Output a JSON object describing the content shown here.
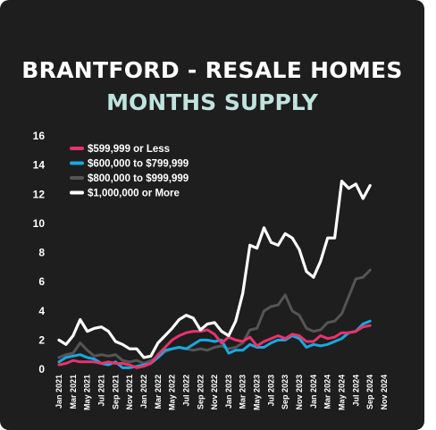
{
  "title": "BRANTFORD - RESALE HOMES",
  "subtitle": "MONTHS SUPPLY",
  "colors": {
    "background": "#1e1e1e",
    "subtitle": "#bfe3de",
    "s599": "#e8336b",
    "s600_799": "#1aa8e0",
    "s800_999": "#555555",
    "s1m": "#ffffff"
  },
  "chart_data": {
    "type": "line",
    "title": "MONTHS SUPPLY",
    "xlabel": "",
    "ylabel": "",
    "ylim": [
      0,
      16
    ],
    "yticks": [
      0,
      2,
      4,
      6,
      8,
      10,
      12,
      14,
      16
    ],
    "grid": false,
    "legend_position": "top-left",
    "x": [
      "Jan 2021",
      "Feb 2021",
      "Mar 2021",
      "Apr 2021",
      "May 2021",
      "Jun 2021",
      "Jul 2021",
      "Aug 2021",
      "Sep 2021",
      "Oct 2021",
      "Nov 2021",
      "Dec 2021",
      "Jan 2022",
      "Feb 2022",
      "Mar 2022",
      "Apr 2022",
      "May 2022",
      "Jun 2022",
      "Jul 2022",
      "Aug 2022",
      "Sep 2022",
      "Oct 2022",
      "Nov 2022",
      "Dec 2022",
      "Jan 2023",
      "Feb 2023",
      "Mar 2023",
      "Apr 2023",
      "May 2023",
      "Jun 2023",
      "Jul 2023",
      "Aug 2023",
      "Sep 2023",
      "Oct 2023",
      "Nov 2023",
      "Dec 2023",
      "Jan 2024",
      "Feb 2024",
      "Mar 2024",
      "Apr 2024",
      "May 2024",
      "Jun 2024",
      "Jul 2024",
      "Aug 2024",
      "Sep 2024",
      "Oct 2024",
      "Nov 2024"
    ],
    "x_tick_labels": [
      "Jan 2021",
      "Mar 2021",
      "May 2021",
      "Jul 2021",
      "Sep 2021",
      "Nov 2021",
      "Jan 2022",
      "Mar 2022",
      "May 2022",
      "Jul 2022",
      "Sep 2022",
      "Nov 2022",
      "Jan 2023",
      "Mar 2023",
      "May 2023",
      "Jul 2023",
      "Sep 2023",
      "Nov 2023",
      "Jan 2024",
      "Mar 2024",
      "May 2024",
      "Jul 2024",
      "Sep 2024",
      "Nov 2024"
    ],
    "series": [
      {
        "name": "$599,999 or Less",
        "color": "#e8336b",
        "values": [
          0.3,
          0.4,
          0.6,
          0.5,
          0.5,
          0.5,
          0.4,
          0.5,
          0.4,
          0.4,
          0.3,
          0.1,
          0.2,
          0.4,
          1.0,
          1.5,
          2.0,
          2.3,
          2.5,
          2.6,
          2.6,
          2.7,
          2.4,
          1.8,
          2.2,
          2.0,
          1.9,
          2.2,
          1.6,
          1.9,
          2.1,
          2.3,
          2.1,
          2.4,
          2.3,
          1.9,
          1.9,
          2.3,
          2.1,
          2.2,
          2.5,
          2.5,
          2.6,
          2.9,
          3.0,
          null,
          null
        ]
      },
      {
        "name": "$600,000 to $799,999",
        "color": "#1aa8e0",
        "values": [
          0.5,
          0.8,
          0.9,
          1.0,
          0.8,
          0.7,
          0.4,
          0.3,
          0.5,
          0.1,
          0.1,
          0.2,
          0.3,
          0.4,
          0.8,
          1.3,
          1.4,
          1.5,
          1.4,
          1.7,
          2.0,
          2.0,
          1.9,
          2.0,
          1.1,
          1.3,
          1.3,
          1.7,
          1.5,
          1.5,
          1.8,
          2.0,
          2.0,
          2.3,
          2.1,
          1.5,
          1.7,
          1.6,
          1.7,
          1.9,
          2.1,
          2.5,
          2.6,
          3.1,
          3.3,
          null,
          null
        ]
      },
      {
        "name": "$800,000 to $999,999",
        "color": "#555555",
        "values": [
          0.8,
          1.0,
          1.1,
          1.8,
          1.3,
          0.9,
          1.0,
          0.9,
          1.0,
          0.6,
          0.5,
          0.6,
          0.4,
          0.6,
          0.8,
          1.2,
          1.4,
          1.5,
          1.4,
          1.3,
          1.4,
          1.3,
          1.5,
          1.6,
          1.4,
          1.5,
          1.8,
          2.7,
          2.8,
          4.0,
          4.3,
          4.4,
          5.1,
          4.0,
          3.7,
          2.8,
          2.6,
          2.7,
          3.2,
          3.3,
          3.8,
          5.0,
          6.2,
          6.3,
          6.8,
          null,
          null
        ]
      },
      {
        "name": "$1,000,000 or More",
        "color": "#ffffff",
        "values": [
          2.0,
          1.7,
          2.3,
          3.4,
          2.6,
          2.8,
          2.9,
          2.6,
          1.9,
          1.7,
          1.4,
          1.4,
          0.8,
          0.9,
          1.8,
          2.3,
          2.8,
          3.4,
          3.7,
          3.5,
          2.7,
          3.1,
          3.2,
          2.6,
          2.3,
          3.3,
          5.2,
          8.5,
          8.3,
          9.7,
          8.7,
          8.5,
          9.3,
          9.0,
          8.2,
          6.7,
          6.3,
          7.4,
          9.0,
          9.0,
          12.9,
          12.4,
          12.7,
          11.7,
          12.6,
          null,
          null
        ]
      }
    ]
  }
}
